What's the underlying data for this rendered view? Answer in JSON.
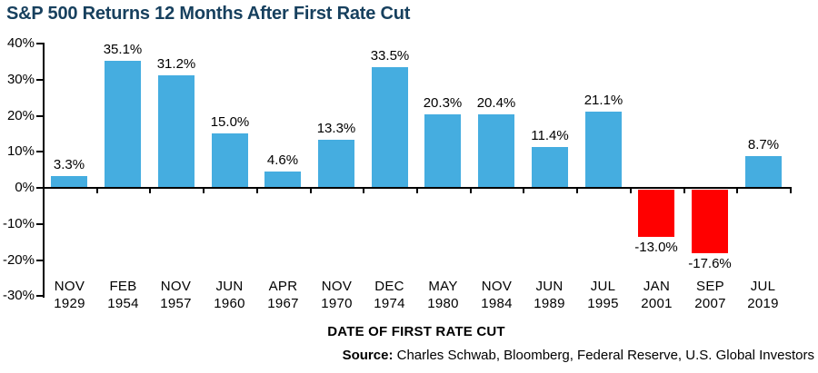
{
  "chart_data": {
    "type": "bar",
    "title": "S&P 500 Returns 12 Months After First Rate Cut",
    "xlabel": "DATE OF FIRST RATE CUT",
    "ylabel": "",
    "ylim": [
      -30,
      40
    ],
    "ytick_step": 10,
    "ytick_suffix": "%",
    "grid": false,
    "legend": null,
    "categories": [
      {
        "month": "NOV",
        "year": "1929"
      },
      {
        "month": "FEB",
        "year": "1954"
      },
      {
        "month": "NOV",
        "year": "1957"
      },
      {
        "month": "JUN",
        "year": "1960"
      },
      {
        "month": "APR",
        "year": "1967"
      },
      {
        "month": "NOV",
        "year": "1970"
      },
      {
        "month": "DEC",
        "year": "1974"
      },
      {
        "month": "MAY",
        "year": "1980"
      },
      {
        "month": "NOV",
        "year": "1984"
      },
      {
        "month": "JUN",
        "year": "1989"
      },
      {
        "month": "JUL",
        "year": "1995"
      },
      {
        "month": "JAN",
        "year": "2001"
      },
      {
        "month": "SEP",
        "year": "2007"
      },
      {
        "month": "JUL",
        "year": "2019"
      }
    ],
    "values": [
      3.3,
      35.1,
      31.2,
      15.0,
      4.6,
      13.3,
      33.5,
      20.3,
      20.4,
      11.4,
      21.1,
      -13.0,
      -17.6,
      8.7
    ],
    "value_label_suffix": "%",
    "colors": {
      "positive_bar": "#45ADE0",
      "negative_bar": "#FF0000",
      "axis": "#000000",
      "label_text": "#000000",
      "title_text": "#17405E"
    }
  },
  "source": {
    "label": "Source:",
    "text": "Charles Schwab, Bloomberg, Federal Reserve, U.S. Global Investors"
  }
}
